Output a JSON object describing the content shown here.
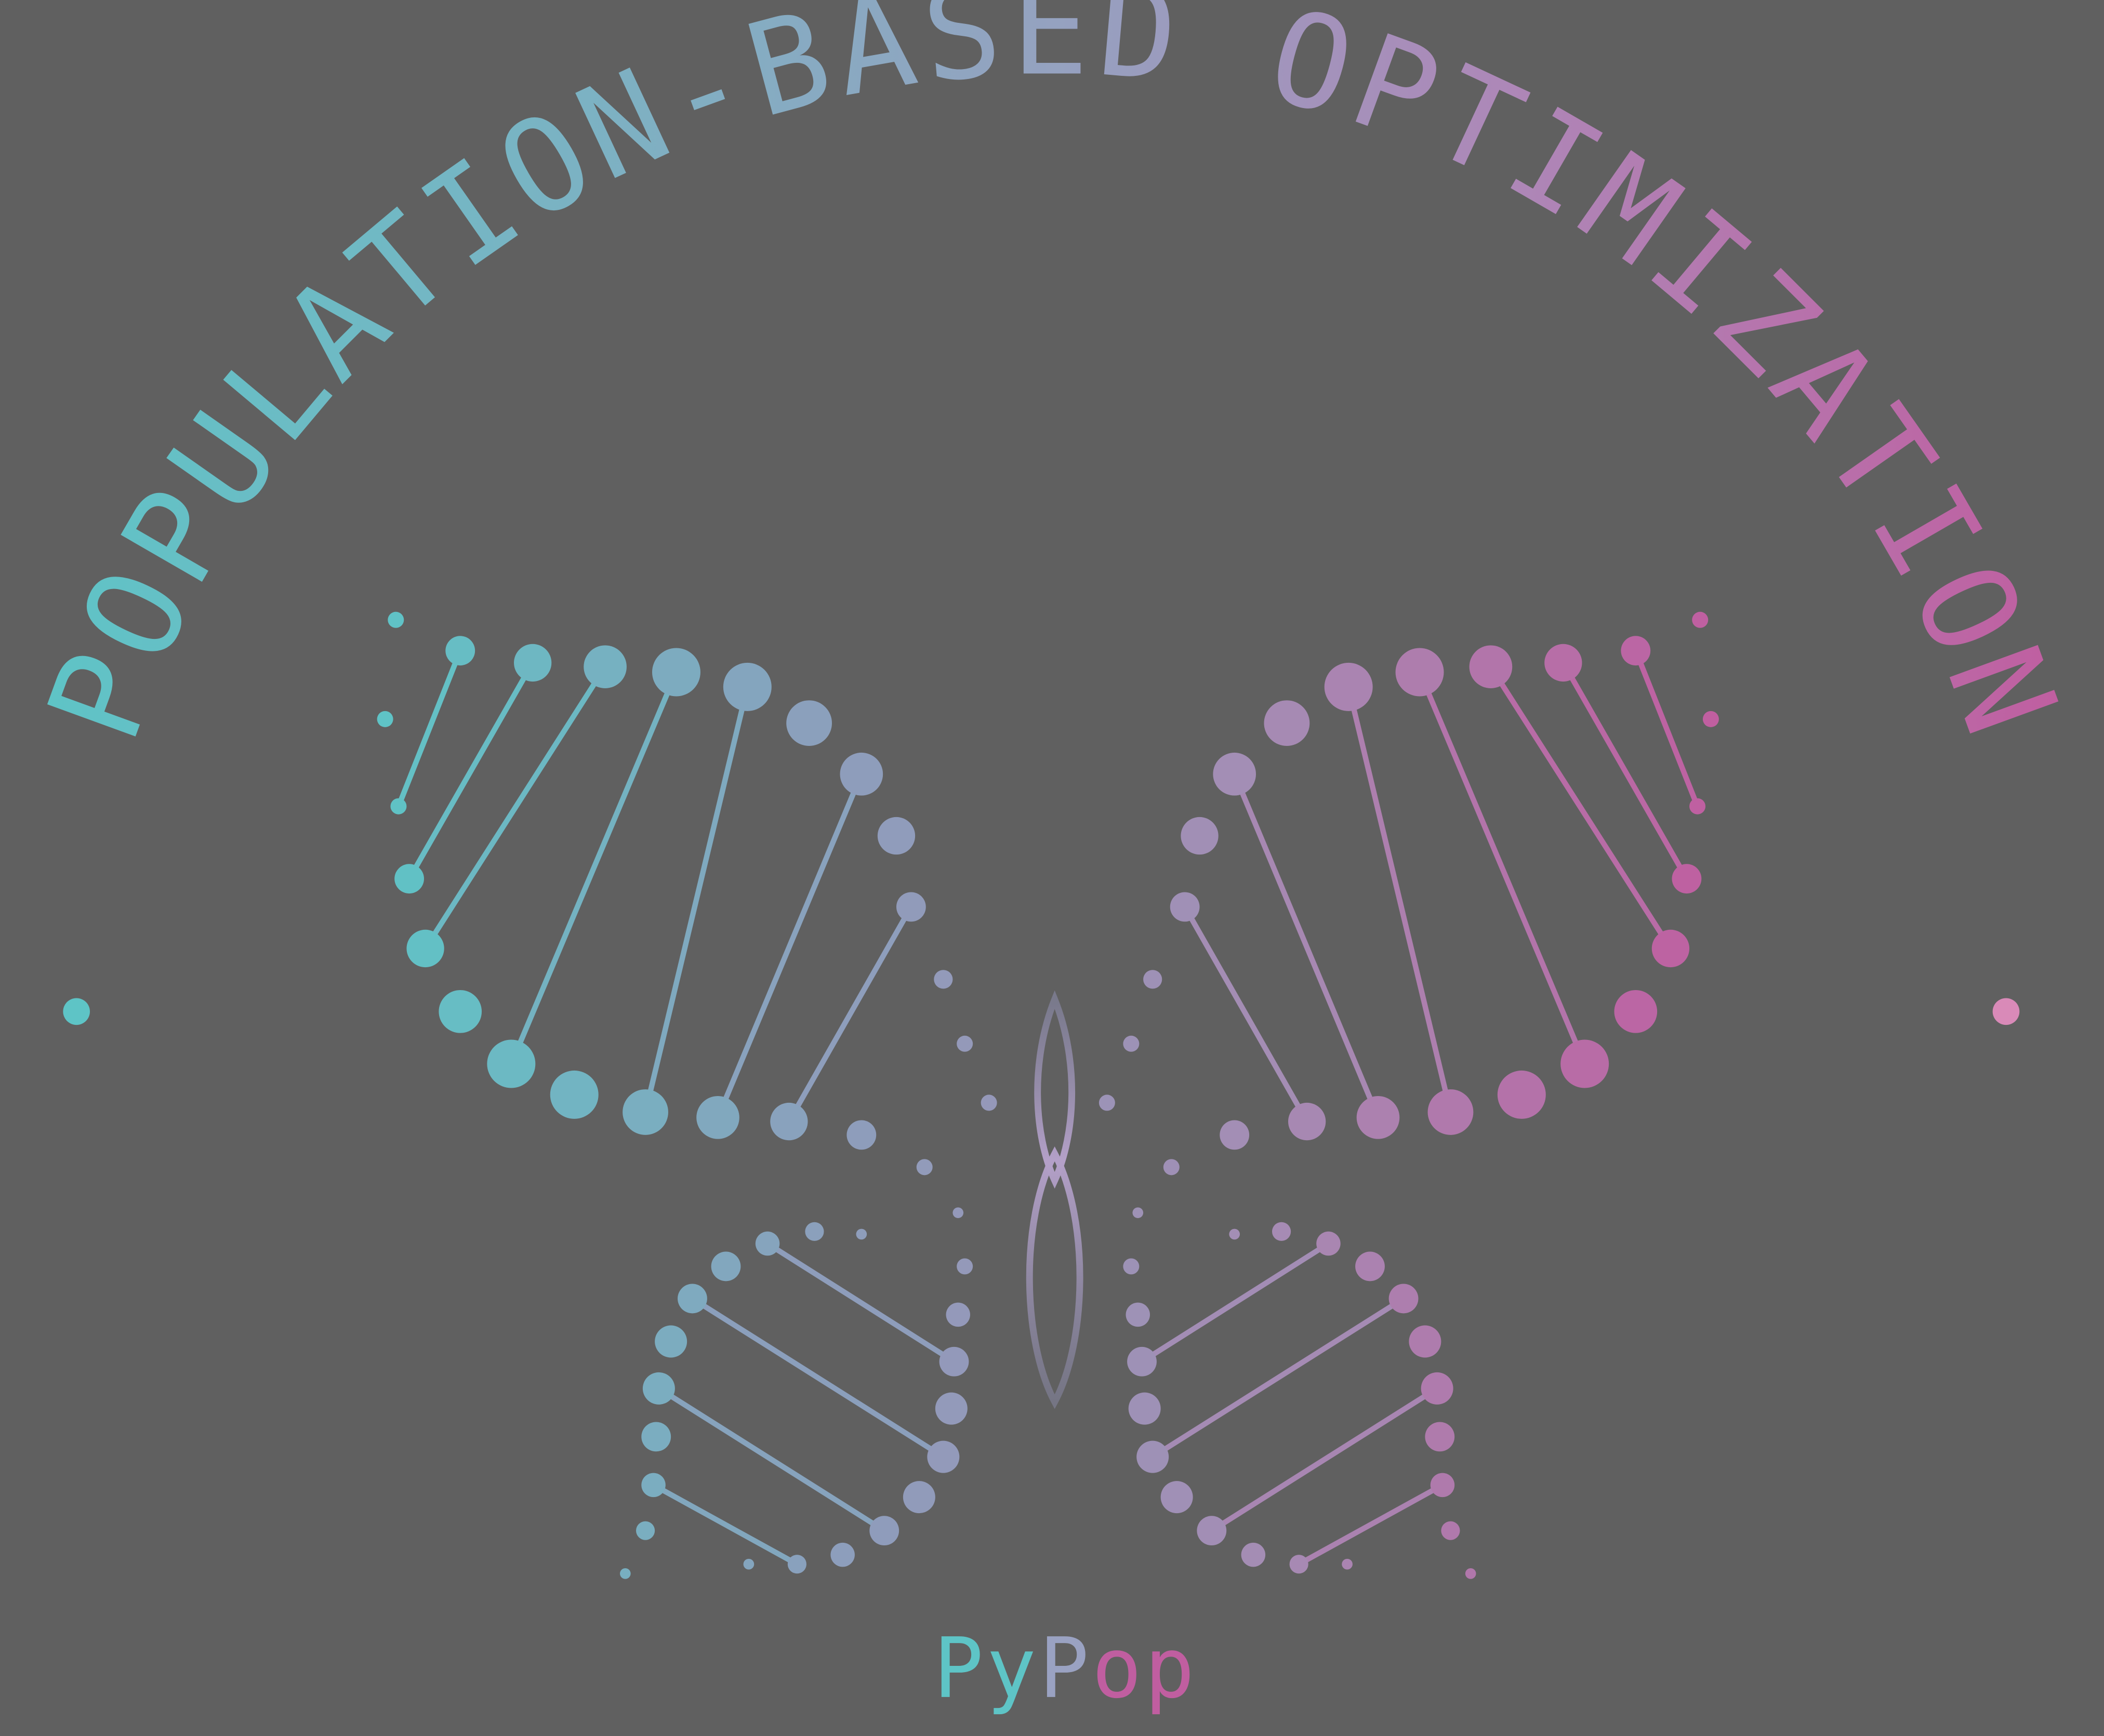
{
  "logo": {
    "arc_title": "POPULATION-BASED OPTIMIZATION",
    "wordmark": "PyPop",
    "wordmark_parts": [
      "Py",
      "P",
      "op"
    ]
  },
  "colors": {
    "background": "#606060",
    "teal": "#5ec4c6",
    "slate": "#8c9fbc",
    "lavender": "#a58cb4",
    "magenta": "#c05ea0",
    "pink": "#d98ab8"
  },
  "icons": {
    "left_helix": "dna-helix-icon",
    "right_helix": "dna-helix-icon",
    "center_loop": "figure-eight-icon"
  }
}
